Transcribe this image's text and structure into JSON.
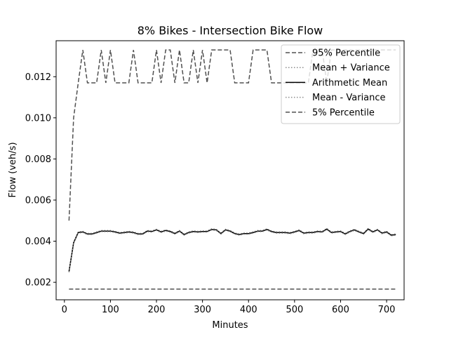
{
  "chart_data": {
    "type": "line",
    "title": "8% Bikes - Intersection Bike Flow",
    "xlabel": "Minutes",
    "ylabel": "Flow (veh/s)",
    "xlim": [
      -18,
      738
    ],
    "ylim": [
      0.00115,
      0.01375
    ],
    "xticks": [
      0,
      100,
      200,
      300,
      400,
      500,
      600,
      700
    ],
    "yticks": [
      0.002,
      0.004,
      0.006,
      0.008,
      0.01,
      0.012
    ],
    "ytick_labels": [
      "0.002",
      "0.004",
      "0.006",
      "0.008",
      "0.010",
      "0.012"
    ],
    "legend_position": "top-right",
    "grid": false,
    "x": [
      10,
      20,
      30,
      40,
      50,
      60,
      70,
      80,
      90,
      100,
      110,
      120,
      130,
      140,
      150,
      160,
      170,
      180,
      190,
      200,
      210,
      220,
      230,
      240,
      250,
      260,
      270,
      280,
      290,
      300,
      310,
      320,
      330,
      340,
      350,
      360,
      370,
      380,
      390,
      400,
      410,
      420,
      430,
      440,
      450,
      460,
      470,
      480,
      490,
      500,
      510,
      520,
      530,
      540,
      550,
      560,
      570,
      580,
      590,
      600,
      610,
      620,
      630,
      640,
      650,
      660,
      670,
      680,
      690,
      700,
      710,
      720
    ],
    "series": [
      {
        "name": "95% Percentile",
        "color": "#505050",
        "dash": "dashed",
        "values": [
          0.005,
          0.01,
          0.0117,
          0.0133,
          0.0117,
          0.0117,
          0.0117,
          0.0133,
          0.0117,
          0.0133,
          0.0117,
          0.0117,
          0.0117,
          0.0117,
          0.0133,
          0.0117,
          0.0117,
          0.0117,
          0.0117,
          0.0133,
          0.0117,
          0.0133,
          0.0133,
          0.0117,
          0.0133,
          0.0117,
          0.0117,
          0.0133,
          0.0117,
          0.0133,
          0.0117,
          0.0133,
          0.0133,
          0.0133,
          0.0133,
          0.0133,
          0.0117,
          0.0117,
          0.0117,
          0.0117,
          0.0133,
          0.0133,
          0.0133,
          0.0133,
          0.0117,
          0.0117,
          0.0117,
          0.0117,
          0.0117,
          0.0117,
          0.0117,
          0.0117,
          0.0117,
          0.0133,
          0.0133,
          0.0133,
          0.0117,
          0.0133,
          0.0133,
          0.0133,
          0.0133,
          0.0133,
          0.0133,
          0.0133,
          0.0133,
          0.0133,
          0.0133,
          0.0133,
          0.0133,
          0.0133,
          0.0133,
          0.0133
        ]
      },
      {
        "name": "Mean + Variance",
        "color": "#8c8c8c",
        "dash": "dotted",
        "values": [
          0.00255,
          0.00395,
          0.00445,
          0.00448,
          0.00438,
          0.00438,
          0.00445,
          0.00452,
          0.00452,
          0.00452,
          0.00448,
          0.00442,
          0.00445,
          0.00448,
          0.00445,
          0.00438,
          0.00438,
          0.00452,
          0.0045,
          0.00458,
          0.00448,
          0.00455,
          0.0045,
          0.0044,
          0.00452,
          0.00435,
          0.00445,
          0.0045,
          0.00448,
          0.0045,
          0.0045,
          0.0046,
          0.00458,
          0.0044,
          0.00458,
          0.00452,
          0.0044,
          0.00435,
          0.0044,
          0.0044,
          0.00445,
          0.00452,
          0.00452,
          0.0046,
          0.0045,
          0.00445,
          0.00445,
          0.00445,
          0.00442,
          0.00448,
          0.00455,
          0.00442,
          0.00445,
          0.00445,
          0.0045,
          0.00448,
          0.00462,
          0.00445,
          0.00448,
          0.0045,
          0.00438,
          0.0045,
          0.00458,
          0.00448,
          0.0044,
          0.00462,
          0.00448,
          0.00458,
          0.00442,
          0.00448,
          0.00432,
          0.00435
        ]
      },
      {
        "name": "Arithmetic Mean",
        "color": "#000000",
        "dash": "solid",
        "values": [
          0.00252,
          0.00392,
          0.00442,
          0.00445,
          0.00435,
          0.00435,
          0.00442,
          0.00449,
          0.00449,
          0.00449,
          0.00445,
          0.00439,
          0.00442,
          0.00445,
          0.00442,
          0.00435,
          0.00435,
          0.00449,
          0.00447,
          0.00455,
          0.00445,
          0.00452,
          0.00447,
          0.00437,
          0.00449,
          0.00432,
          0.00442,
          0.00447,
          0.00445,
          0.00447,
          0.00447,
          0.00457,
          0.00455,
          0.00437,
          0.00455,
          0.00449,
          0.00437,
          0.00432,
          0.00437,
          0.00437,
          0.00442,
          0.00449,
          0.00449,
          0.00457,
          0.00447,
          0.00442,
          0.00442,
          0.00442,
          0.00439,
          0.00445,
          0.00452,
          0.00439,
          0.00442,
          0.00442,
          0.00447,
          0.00445,
          0.00459,
          0.00442,
          0.00445,
          0.00447,
          0.00435,
          0.00447,
          0.00455,
          0.00445,
          0.00437,
          0.00459,
          0.00445,
          0.00455,
          0.00439,
          0.00445,
          0.00429,
          0.00432
        ]
      },
      {
        "name": "Mean - Variance",
        "color": "#8c8c8c",
        "dash": "dotted",
        "values": [
          0.00249,
          0.00389,
          0.00439,
          0.00442,
          0.00432,
          0.00432,
          0.00439,
          0.00446,
          0.00446,
          0.00446,
          0.00442,
          0.00436,
          0.00439,
          0.00442,
          0.00439,
          0.00432,
          0.00432,
          0.00446,
          0.00444,
          0.00452,
          0.00442,
          0.00449,
          0.00444,
          0.00434,
          0.00446,
          0.00429,
          0.00439,
          0.00444,
          0.00442,
          0.00444,
          0.00444,
          0.00454,
          0.00452,
          0.00434,
          0.00452,
          0.00446,
          0.00434,
          0.00429,
          0.00434,
          0.00434,
          0.00439,
          0.00446,
          0.00446,
          0.00454,
          0.00444,
          0.00439,
          0.00439,
          0.00439,
          0.00436,
          0.00442,
          0.00449,
          0.00436,
          0.00439,
          0.00439,
          0.00444,
          0.00442,
          0.00456,
          0.00439,
          0.00442,
          0.00444,
          0.00432,
          0.00444,
          0.00452,
          0.00442,
          0.00434,
          0.00456,
          0.00442,
          0.00452,
          0.00436,
          0.00442,
          0.00426,
          0.00429
        ]
      },
      {
        "name": "5% Percentile",
        "color": "#505050",
        "dash": "dashed",
        "values": [
          0.00167,
          0.00167,
          0.00167,
          0.00167,
          0.00167,
          0.00167,
          0.00167,
          0.00167,
          0.00167,
          0.00167,
          0.00167,
          0.00167,
          0.00167,
          0.00167,
          0.00167,
          0.00167,
          0.00167,
          0.00167,
          0.00167,
          0.00167,
          0.00167,
          0.00167,
          0.00167,
          0.00167,
          0.00167,
          0.00167,
          0.00167,
          0.00167,
          0.00167,
          0.00167,
          0.00167,
          0.00167,
          0.00167,
          0.00167,
          0.00167,
          0.00167,
          0.00167,
          0.00167,
          0.00167,
          0.00167,
          0.00167,
          0.00167,
          0.00167,
          0.00167,
          0.00167,
          0.00167,
          0.00167,
          0.00167,
          0.00167,
          0.00167,
          0.00167,
          0.00167,
          0.00167,
          0.00167,
          0.00167,
          0.00167,
          0.00167,
          0.00167,
          0.00167,
          0.00167,
          0.00167,
          0.00167,
          0.00167,
          0.00167,
          0.00167,
          0.00167,
          0.00167,
          0.00167,
          0.00167,
          0.00167,
          0.00167,
          0.00167
        ]
      }
    ]
  }
}
